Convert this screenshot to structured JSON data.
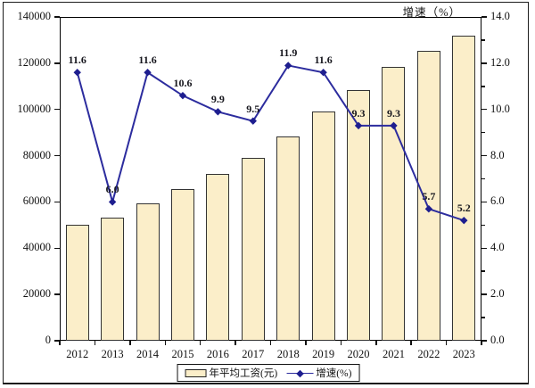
{
  "chart_data": {
    "type": "bar",
    "subtype": "bar-line combo, dual axis",
    "categories": [
      "2012",
      "2013",
      "2014",
      "2015",
      "2016",
      "2017",
      "2018",
      "2019",
      "2020",
      "2021",
      "2022",
      "2023"
    ],
    "series": [
      {
        "name": "年平均工资(元)",
        "type": "bar",
        "axis": "left",
        "values": [
          50300,
          53300,
          59500,
          65700,
          72100,
          79000,
          88500,
          99000,
          108500,
          118400,
          125400,
          131800
        ]
      },
      {
        "name": "增速(%)",
        "type": "line",
        "axis": "right",
        "values": [
          11.6,
          6.0,
          11.6,
          10.6,
          9.9,
          9.5,
          11.9,
          11.6,
          9.3,
          9.3,
          5.7,
          5.2
        ]
      }
    ],
    "point_labels": [
      "11.6",
      "6.0",
      "11.6",
      "10.6",
      "9.9",
      "9.5",
      "11.9",
      "11.6",
      "9.3",
      "9.3",
      "5.7",
      "5.2"
    ],
    "right_axis_title": "增速（%）",
    "left_axis": {
      "min": 0,
      "max": 140000,
      "tick_step": 20000,
      "tick_labels": [
        "0",
        "20000",
        "40000",
        "60000",
        "80000",
        "100000",
        "120000",
        "140000"
      ]
    },
    "right_axis": {
      "min": 0,
      "max": 14,
      "tick_step": 2,
      "minor_step": 1,
      "tick_labels": [
        "0.0",
        "2.0",
        "4.0",
        "6.0",
        "8.0",
        "10.0",
        "12.0",
        "14.0"
      ]
    },
    "grid": false,
    "legend_position": "bottom-center-boxed",
    "colors": {
      "bar_fill": "#FBEEC9",
      "bar_border": "#333333",
      "line": "#2C2C9E",
      "marker": "#1E1E8F",
      "text": "#111111"
    }
  },
  "legend": {
    "items": [
      {
        "label": "年平均工资(元)",
        "marker": "bar-swatch"
      },
      {
        "label": "增速(%)",
        "marker": "line-swatch"
      }
    ]
  }
}
